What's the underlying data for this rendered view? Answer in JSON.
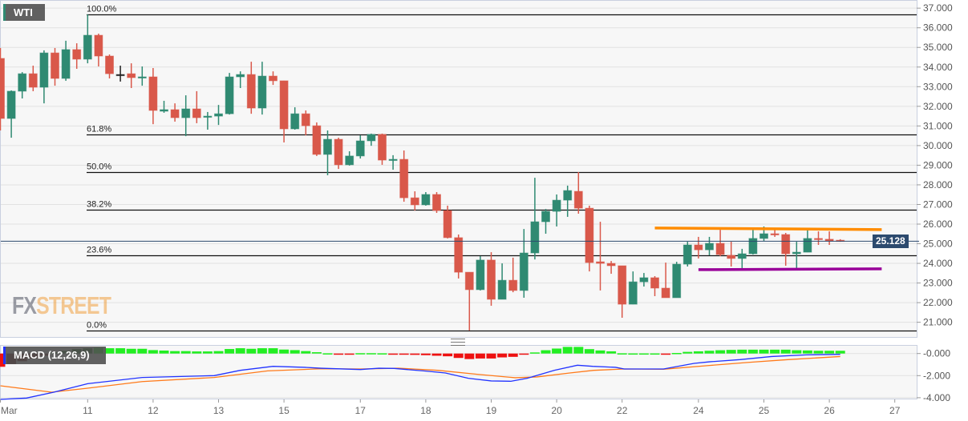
{
  "chart_data": {
    "type": "candlestick",
    "title": "WTI",
    "current_price": 25.128,
    "current_price_label": "25.128",
    "ylim": [
      20.3,
      37.4
    ],
    "y_ticks": [
      "37.000",
      "36.000",
      "35.000",
      "34.000",
      "33.000",
      "32.000",
      "31.000",
      "30.000",
      "29.000",
      "28.000",
      "27.000",
      "26.000",
      "25.000",
      "24.000",
      "23.000",
      "22.000",
      "21.000"
    ],
    "y_tick_values": [
      37,
      36,
      35,
      34,
      33,
      32,
      31,
      30,
      29,
      28,
      27,
      26,
      25,
      24,
      23,
      22,
      21
    ],
    "x_labels": [
      {
        "label": "Mar",
        "i": 0
      },
      {
        "label": "11",
        "i": 8
      },
      {
        "label": "12",
        "i": 14
      },
      {
        "label": "13",
        "i": 20
      },
      {
        "label": "15",
        "i": 26
      },
      {
        "label": "17",
        "i": 33
      },
      {
        "label": "18",
        "i": 39
      },
      {
        "label": "19",
        "i": 45
      },
      {
        "label": "20",
        "i": 51
      },
      {
        "label": "22",
        "i": 57
      },
      {
        "label": "24",
        "i": 64
      },
      {
        "label": "25",
        "i": 70
      },
      {
        "label": "26",
        "i": 76
      },
      {
        "label": "27",
        "i": 82
      }
    ],
    "candles_ohlc": [
      [
        34.44,
        34.97,
        30.77,
        31.38
      ],
      [
        31.38,
        32.81,
        30.4,
        32.77
      ],
      [
        32.77,
        33.74,
        32.4,
        33.66
      ],
      [
        33.66,
        34.07,
        32.77,
        32.97
      ],
      [
        32.97,
        34.85,
        32.15,
        34.72
      ],
      [
        34.72,
        34.97,
        33.05,
        33.42
      ],
      [
        33.42,
        35.34,
        33.3,
        34.89
      ],
      [
        34.89,
        35.21,
        33.91,
        34.4
      ],
      [
        34.4,
        36.68,
        34.19,
        35.62
      ],
      [
        35.62,
        35.7,
        34.03,
        34.56
      ],
      [
        34.56,
        34.64,
        33.42,
        33.66
      ],
      [
        33.62,
        34.07,
        33.26,
        33.62
      ],
      [
        33.66,
        34.19,
        32.93,
        33.46
      ],
      [
        33.46,
        34.03,
        33.05,
        33.5
      ],
      [
        33.5,
        33.95,
        31.09,
        31.79
      ],
      [
        31.75,
        32.28,
        31.67,
        31.83
      ],
      [
        31.83,
        32.15,
        31.22,
        31.42
      ],
      [
        31.42,
        32.56,
        30.48,
        31.87
      ],
      [
        31.87,
        32.77,
        31.14,
        31.42
      ],
      [
        31.46,
        31.71,
        30.81,
        31.5
      ],
      [
        31.5,
        32.07,
        31.05,
        31.62
      ],
      [
        31.62,
        33.7,
        31.58,
        33.5
      ],
      [
        33.5,
        33.78,
        32.93,
        33.62
      ],
      [
        33.62,
        34.27,
        31.62,
        31.91
      ],
      [
        31.91,
        34.27,
        31.58,
        33.54
      ],
      [
        33.54,
        33.78,
        33.09,
        33.3
      ],
      [
        33.3,
        33.3,
        30.16,
        30.85
      ],
      [
        30.85,
        31.95,
        30.81,
        31.62
      ],
      [
        31.62,
        31.79,
        30.52,
        31.01
      ],
      [
        31.01,
        31.18,
        29.47,
        29.55
      ],
      [
        29.55,
        30.77,
        28.49,
        30.32
      ],
      [
        30.32,
        30.4,
        28.81,
        29.02
      ],
      [
        29.02,
        29.71,
        28.98,
        29.47
      ],
      [
        29.47,
        30.52,
        29.34,
        30.24
      ],
      [
        30.24,
        30.61,
        29.99,
        30.57
      ],
      [
        30.57,
        30.61,
        29.02,
        29.26
      ],
      [
        29.26,
        29.51,
        28.77,
        29.3
      ],
      [
        29.3,
        29.75,
        27.14,
        27.34
      ],
      [
        27.34,
        27.67,
        26.69,
        26.98
      ],
      [
        26.98,
        27.63,
        26.94,
        27.51
      ],
      [
        27.51,
        27.63,
        26.57,
        26.69
      ],
      [
        26.69,
        26.94,
        25.27,
        25.31
      ],
      [
        25.31,
        25.47,
        23.23,
        23.55
      ],
      [
        23.55,
        23.55,
        20.58,
        22.66
      ],
      [
        22.66,
        24.37,
        22.62,
        24.17
      ],
      [
        24.17,
        24.57,
        21.84,
        22.17
      ],
      [
        22.17,
        24.0,
        22.17,
        23.14
      ],
      [
        23.14,
        24.29,
        22.53,
        22.62
      ],
      [
        22.62,
        25.75,
        22.25,
        24.53
      ],
      [
        24.53,
        28.36,
        24.2,
        26.12
      ],
      [
        26.12,
        26.77,
        25.51,
        26.65
      ],
      [
        26.65,
        27.51,
        25.88,
        27.22
      ],
      [
        27.22,
        27.96,
        26.37,
        27.71
      ],
      [
        27.67,
        28.65,
        26.53,
        26.81
      ],
      [
        26.81,
        26.94,
        23.59,
        24.04
      ],
      [
        24.08,
        26.12,
        22.62,
        24.0
      ],
      [
        24.0,
        24.12,
        23.47,
        23.88
      ],
      [
        23.88,
        23.88,
        21.23,
        21.92
      ],
      [
        21.92,
        23.59,
        21.92,
        23.06
      ],
      [
        23.06,
        23.51,
        22.82,
        23.27
      ],
      [
        23.27,
        23.35,
        22.33,
        22.74
      ],
      [
        22.74,
        24.04,
        22.25,
        22.25
      ],
      [
        22.25,
        24.08,
        22.25,
        23.96
      ],
      [
        23.96,
        25.1,
        23.84,
        24.94
      ],
      [
        24.94,
        25.35,
        24.25,
        24.69
      ],
      [
        24.69,
        25.35,
        24.41,
        25.02
      ],
      [
        25.02,
        25.71,
        24.37,
        24.45
      ],
      [
        24.41,
        25.1,
        23.84,
        24.25
      ],
      [
        24.25,
        24.74,
        23.76,
        24.49
      ],
      [
        24.49,
        25.71,
        24.45,
        25.27
      ],
      [
        25.27,
        25.88,
        25.14,
        25.51
      ],
      [
        25.51,
        25.71,
        25.35,
        25.47
      ],
      [
        25.47,
        25.55,
        23.88,
        24.49
      ],
      [
        24.49,
        25.1,
        23.76,
        24.57
      ],
      [
        24.57,
        25.71,
        24.57,
        25.27
      ],
      [
        25.27,
        25.63,
        24.94,
        25.23
      ],
      [
        25.23,
        25.63,
        24.94,
        25.14
      ],
      [
        25.18,
        25.23,
        25.1,
        25.13
      ]
    ],
    "fibonacci": [
      {
        "label": "100.0%",
        "value": 36.68
      },
      {
        "label": "61.8%",
        "value": 30.57
      },
      {
        "label": "50.0%",
        "value": 28.63
      },
      {
        "label": "38.2%",
        "value": 26.73
      },
      {
        "label": "23.6%",
        "value": 24.41
      },
      {
        "label": "0.0%",
        "value": 20.58
      }
    ],
    "trendlines": [
      {
        "name": "resistance",
        "color": "#ff8c00",
        "start": [
          60,
          25.8
        ],
        "end": [
          80.8,
          25.72
        ]
      },
      {
        "name": "support",
        "color": "#990099",
        "start": [
          64,
          23.68
        ],
        "end": [
          80.8,
          23.72
        ]
      }
    ],
    "colors": {
      "up": "#2f8a72",
      "down": "#d9584a",
      "doji": "#222222",
      "price_line": "#2c4a6e",
      "macd": "#2233ff",
      "signal": "#ff7a1a",
      "hist_pos": "#22ee22",
      "hist_neg": "#ee1111"
    },
    "macd": {
      "label": "MACD (12,26,9)",
      "ylim": [
        -4.1,
        0.8
      ],
      "y_ticks": [
        "-0.000",
        "-2.000",
        "-4.000"
      ],
      "y_tick_values": [
        0,
        -2,
        -4
      ],
      "histogram": [
        -1.2,
        -0.95,
        -0.7,
        -0.45,
        -0.2,
        0.1,
        0.25,
        0.4,
        0.48,
        0.53,
        0.48,
        0.48,
        0.43,
        0.43,
        0.31,
        0.27,
        0.22,
        0.22,
        0.19,
        0.19,
        0.22,
        0.41,
        0.48,
        0.43,
        0.48,
        0.48,
        0.36,
        0.31,
        0.22,
        0.12,
        0.02,
        -0.05,
        -0.05,
        0.03,
        0.03,
        0.02,
        -0.05,
        -0.1,
        -0.12,
        -0.15,
        -0.2,
        -0.25,
        -0.4,
        -0.5,
        -0.45,
        -0.45,
        -0.35,
        -0.3,
        -0.1,
        0.1,
        0.3,
        0.45,
        0.6,
        0.6,
        0.4,
        0.28,
        0.2,
        0.02,
        0.01,
        0.01,
        0.01,
        -0.03,
        0.05,
        0.15,
        0.2,
        0.25,
        0.3,
        0.33,
        0.35,
        0.35,
        0.35,
        0.35,
        0.35,
        0.3,
        0.28,
        0.25,
        0.25,
        0.25
      ],
      "macd_line": [
        [
          0,
          -4.15
        ],
        [
          2.4,
          -4.03
        ],
        [
          4.9,
          -3.5
        ],
        [
          8,
          -2.73
        ],
        [
          13,
          -2.17
        ],
        [
          19.6,
          -2.0
        ],
        [
          22,
          -1.52
        ],
        [
          25,
          -1.16
        ],
        [
          27.9,
          -1.25
        ],
        [
          29.4,
          -1.33
        ],
        [
          33,
          -1.45
        ],
        [
          34.7,
          -1.33
        ],
        [
          36.1,
          -1.35
        ],
        [
          39,
          -1.59
        ],
        [
          40.8,
          -1.76
        ],
        [
          42.9,
          -2.24
        ],
        [
          45,
          -2.48
        ],
        [
          46.8,
          -2.51
        ],
        [
          48.3,
          -2.24
        ],
        [
          50.8,
          -1.52
        ],
        [
          52.9,
          -1.06
        ],
        [
          54.3,
          -1.16
        ],
        [
          56.4,
          -1.25
        ],
        [
          57.2,
          -1.4
        ],
        [
          60.8,
          -1.4
        ],
        [
          63.6,
          -0.89
        ],
        [
          65,
          -0.75
        ],
        [
          67.8,
          -0.55
        ],
        [
          70.7,
          -0.27
        ],
        [
          73.9,
          -0.12
        ],
        [
          77,
          -0.07
        ]
      ],
      "signal_line": [
        [
          0,
          -2.92
        ],
        [
          4.7,
          -3.5
        ],
        [
          8,
          -3.14
        ],
        [
          13,
          -2.54
        ],
        [
          19.6,
          -2.17
        ],
        [
          24.5,
          -1.57
        ],
        [
          29.4,
          -1.38
        ],
        [
          33,
          -1.4
        ],
        [
          36.5,
          -1.33
        ],
        [
          40.1,
          -1.52
        ],
        [
          43.7,
          -1.88
        ],
        [
          47.2,
          -2.19
        ],
        [
          49.2,
          -2.12
        ],
        [
          52.2,
          -1.76
        ],
        [
          54.4,
          -1.52
        ],
        [
          57.2,
          -1.4
        ],
        [
          60.8,
          -1.42
        ],
        [
          65,
          -1.08
        ],
        [
          68.6,
          -0.8
        ],
        [
          72.2,
          -0.55
        ],
        [
          77,
          -0.27
        ]
      ]
    }
  },
  "watermark": {
    "part1": "FX",
    "part2": "STREET"
  }
}
